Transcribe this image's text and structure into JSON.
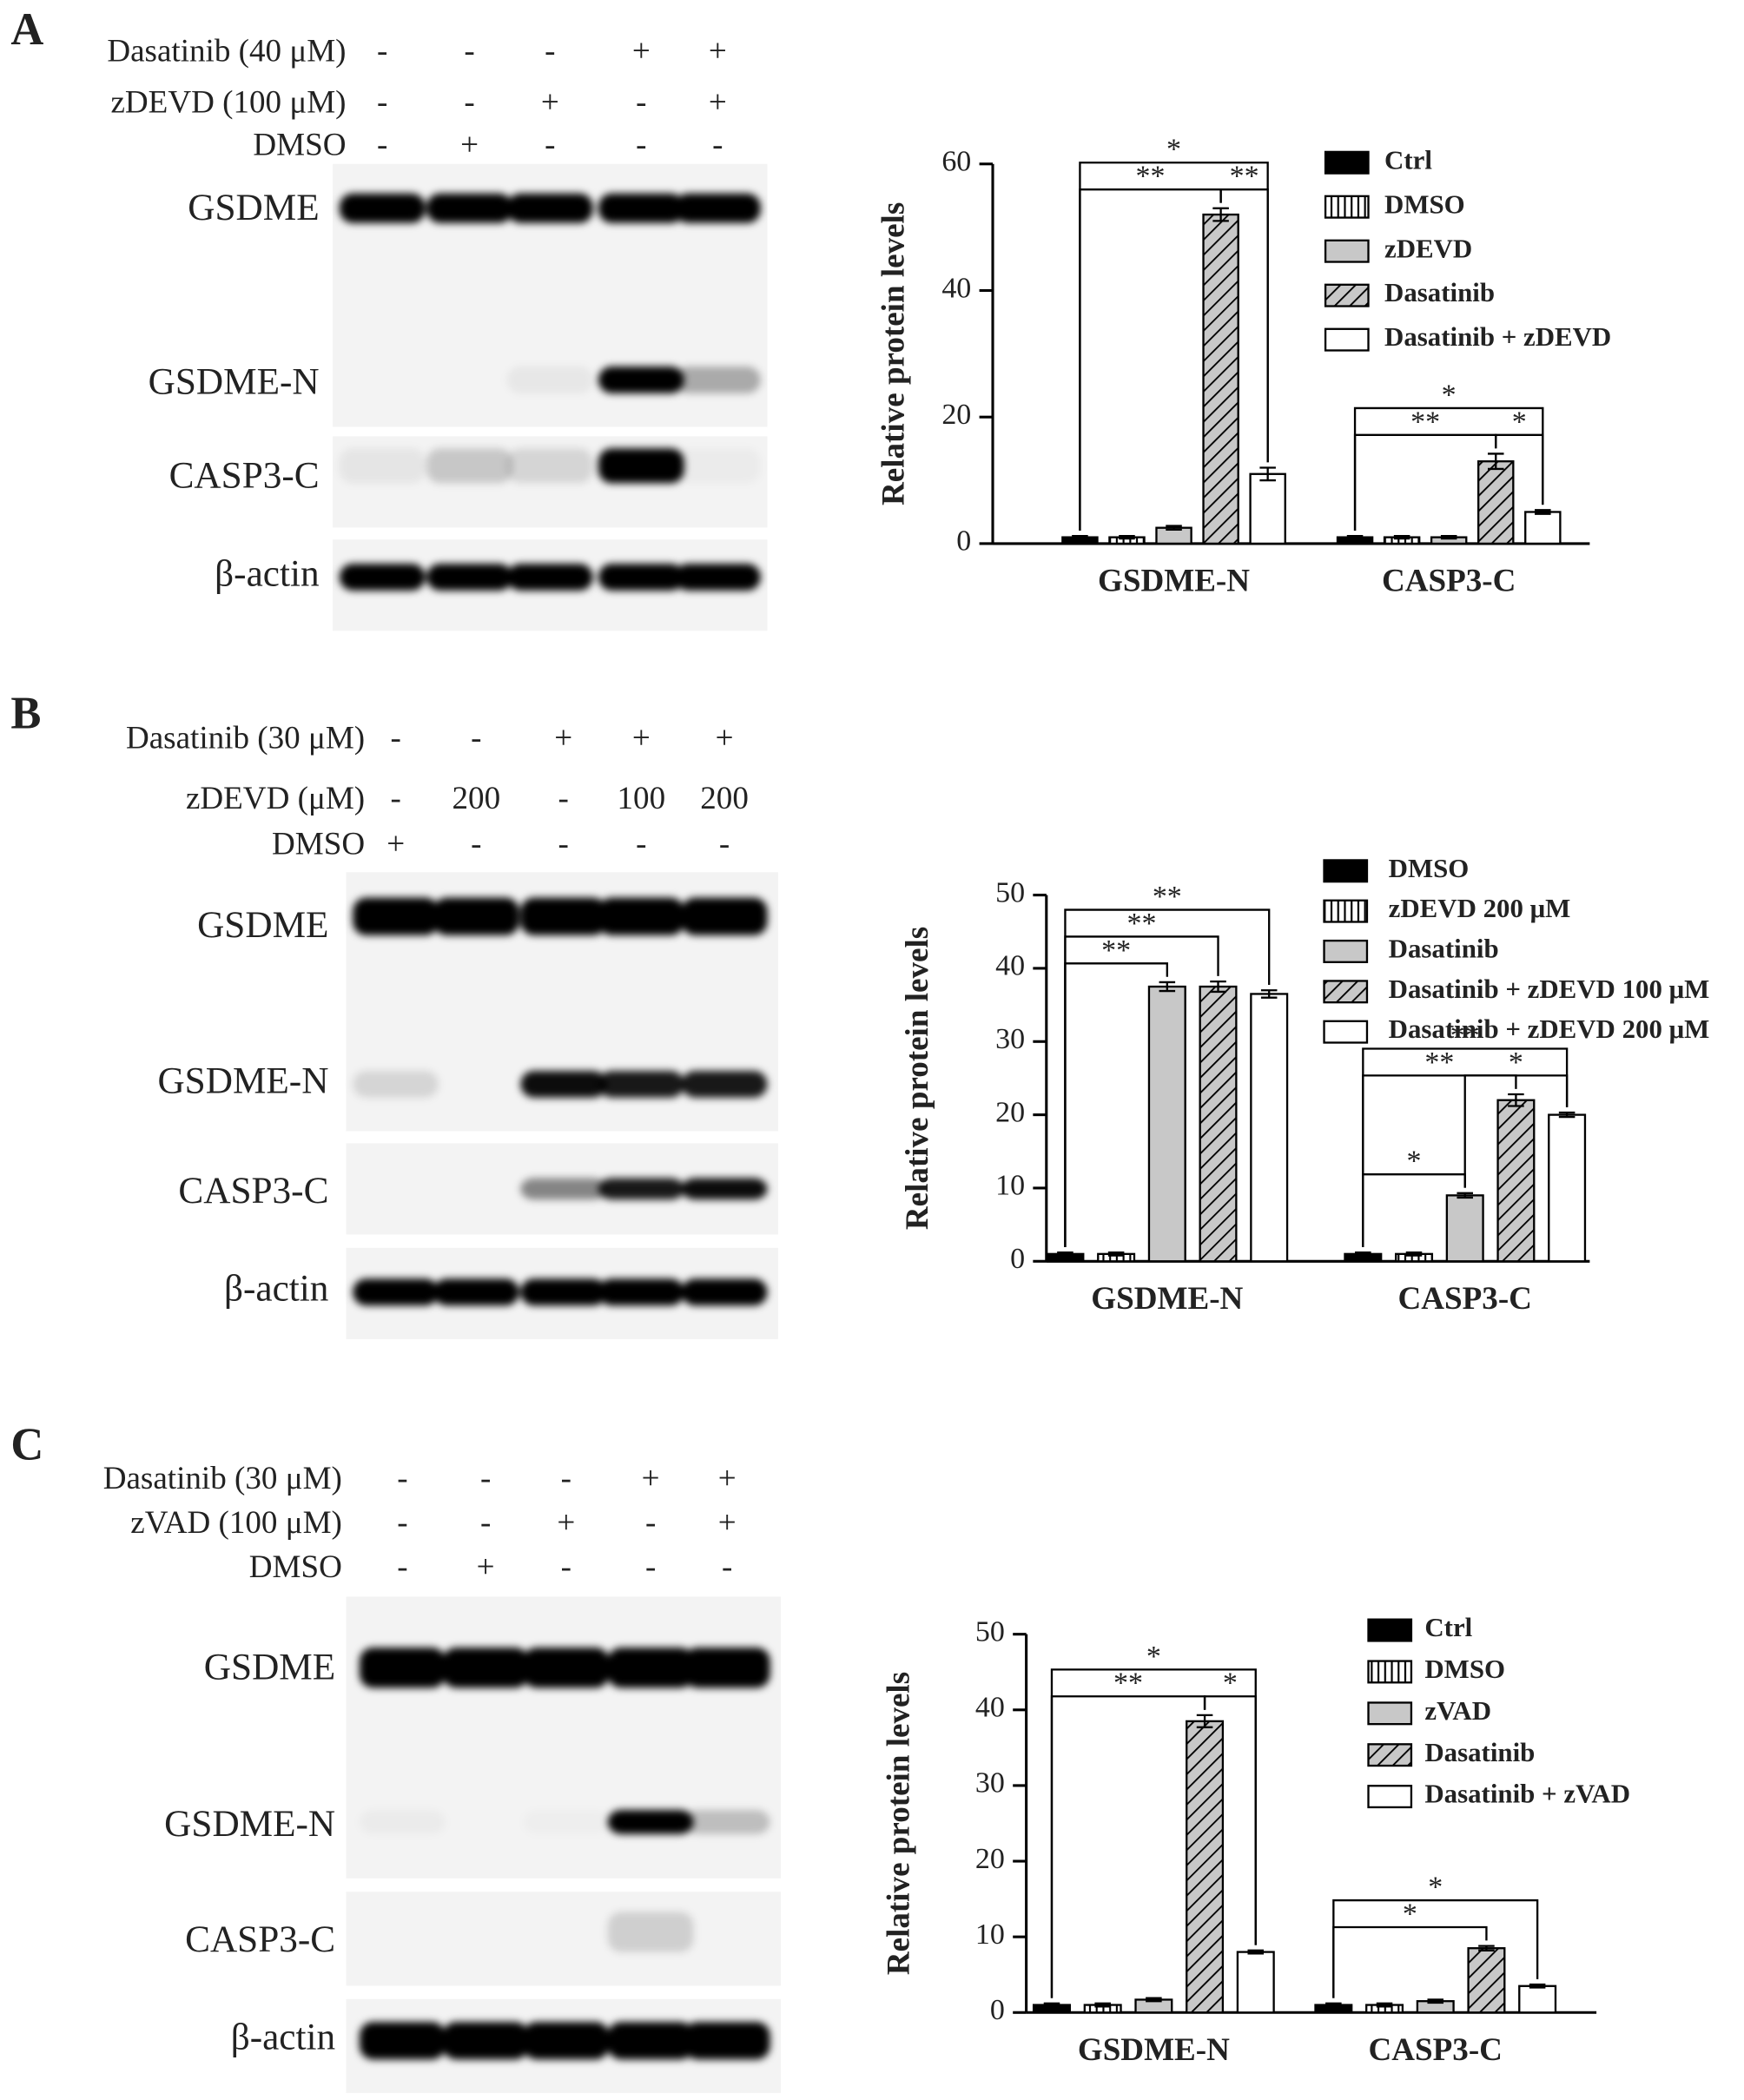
{
  "panels": [
    {
      "label": "A",
      "treatments": [
        {
          "name": "Dasatinib (40 μM)",
          "lanes": [
            "-",
            "-",
            "-",
            "+",
            "+"
          ]
        },
        {
          "name": "zDEVD (100 μM)",
          "lanes": [
            "-",
            "-",
            "+",
            "-",
            "+"
          ]
        },
        {
          "name": "DMSO",
          "lanes": [
            "-",
            "+",
            "-",
            "-",
            "-"
          ]
        }
      ],
      "bands": [
        "GSDME",
        "GSDME-N",
        "CASP3-C",
        "β-actin"
      ]
    },
    {
      "label": "B",
      "treatments": [
        {
          "name": "Dasatinib (30 μM)",
          "lanes": [
            "-",
            "-",
            "+",
            "+",
            "+"
          ]
        },
        {
          "name": "zDEVD (μM)",
          "lanes": [
            "-",
            "200",
            "-",
            "100",
            "200"
          ]
        },
        {
          "name": "DMSO",
          "lanes": [
            "+",
            "-",
            "-",
            "-",
            "-"
          ]
        }
      ],
      "bands": [
        "GSDME",
        "GSDME-N",
        "CASP3-C",
        "β-actin"
      ]
    },
    {
      "label": "C",
      "treatments": [
        {
          "name": "Dasatinib (30 μM)",
          "lanes": [
            "-",
            "-",
            "-",
            "+",
            "+"
          ]
        },
        {
          "name": "zVAD (100 μM)",
          "lanes": [
            "-",
            "-",
            "+",
            "-",
            "+"
          ]
        },
        {
          "name": "DMSO",
          "lanes": [
            "-",
            "+",
            "-",
            "-",
            "-"
          ]
        }
      ],
      "bands": [
        "GSDME",
        "GSDME-N",
        "CASP3-C",
        "β-actin"
      ]
    }
  ],
  "chart_data": [
    {
      "type": "bar",
      "ylabel": "Relative protein levels",
      "categories": [
        "GSDME-N",
        "CASP3-C"
      ],
      "series": [
        {
          "name": "Ctrl",
          "color": "#000000",
          "pattern": "solid",
          "values": [
            1,
            1
          ],
          "errors": [
            0.2,
            0.2
          ]
        },
        {
          "name": "DMSO",
          "color": "#ffffff",
          "pattern": "vertical-stripes",
          "values": [
            1,
            1
          ],
          "errors": [
            0.2,
            0.2
          ]
        },
        {
          "name": "zDEVD",
          "color": "#c8c8c8",
          "pattern": "solid",
          "values": [
            2.5,
            1
          ],
          "errors": [
            0.3,
            0.2
          ]
        },
        {
          "name": "Dasatinib",
          "color": "#c8c8c8",
          "pattern": "diagonal-hatch",
          "values": [
            52,
            13
          ],
          "errors": [
            1,
            1.2
          ]
        },
        {
          "name": "Dasatinib + zDEVD",
          "color": "#ffffff",
          "pattern": "solid",
          "values": [
            11,
            5
          ],
          "errors": [
            1,
            0.3
          ]
        }
      ],
      "ylim": [
        0,
        60
      ],
      "yticks": [
        0,
        20,
        40,
        60
      ],
      "annotations": [
        {
          "text": "**",
          "category": "GSDME-N",
          "between": [
            "Dasatinib",
            "Dasatinib + zDEVD"
          ]
        },
        {
          "text": "**",
          "category": "GSDME-N",
          "between": [
            "Ctrl",
            "Dasatinib"
          ]
        },
        {
          "text": "*",
          "category": "GSDME-N",
          "between": [
            "Ctrl",
            "Dasatinib + zDEVD"
          ]
        },
        {
          "text": "*",
          "category": "CASP3-C",
          "between": [
            "Dasatinib",
            "Dasatinib + zDEVD"
          ]
        },
        {
          "text": "**",
          "category": "CASP3-C",
          "between": [
            "Ctrl",
            "Dasatinib"
          ]
        },
        {
          "text": "*",
          "category": "CASP3-C",
          "between": [
            "Ctrl",
            "Dasatinib + zDEVD"
          ]
        }
      ]
    },
    {
      "type": "bar",
      "ylabel": "Relative protein levels",
      "categories": [
        "GSDME-N",
        "CASP3-C"
      ],
      "series": [
        {
          "name": "DMSO",
          "color": "#000000",
          "pattern": "solid",
          "values": [
            1,
            1
          ],
          "errors": [
            0.2,
            0.2
          ]
        },
        {
          "name": "zDEVD 200 μM",
          "color": "#ffffff",
          "pattern": "vertical-stripes",
          "values": [
            1,
            1
          ],
          "errors": [
            0.2,
            0.2
          ]
        },
        {
          "name": "Dasatinib",
          "color": "#c8c8c8",
          "pattern": "solid",
          "values": [
            37.5,
            9
          ],
          "errors": [
            0.6,
            0.3
          ]
        },
        {
          "name": "Dasatinib + zDEVD 100 μM",
          "color": "#c8c8c8",
          "pattern": "diagonal-hatch",
          "values": [
            37.5,
            22
          ],
          "errors": [
            0.7,
            0.8
          ]
        },
        {
          "name": "Dasatinib + zDEVD 200 μM",
          "color": "#ffffff",
          "pattern": "solid",
          "values": [
            36.5,
            20
          ],
          "errors": [
            0.5,
            0.3
          ]
        }
      ],
      "ylim": [
        0,
        50
      ],
      "yticks": [
        0,
        10,
        20,
        30,
        40,
        50
      ],
      "annotations": [
        {
          "text": "**",
          "category": "GSDME-N",
          "between": [
            "DMSO",
            "Dasatinib"
          ]
        },
        {
          "text": "**",
          "category": "GSDME-N",
          "between": [
            "DMSO",
            "Dasatinib + zDEVD 100 μM"
          ]
        },
        {
          "text": "**",
          "category": "GSDME-N",
          "between": [
            "DMSO",
            "Dasatinib + zDEVD 200 μM"
          ]
        },
        {
          "text": "*",
          "category": "CASP3-C",
          "between": [
            "DMSO",
            "Dasatinib"
          ]
        },
        {
          "text": "*",
          "category": "CASP3-C",
          "between": [
            "Dasatinib",
            "Dasatinib + zDEVD 200 μM"
          ]
        },
        {
          "text": "**",
          "category": "CASP3-C",
          "between": [
            "DMSO",
            "Dasatinib + zDEVD 100 μM"
          ]
        },
        {
          "text": "**",
          "category": "CASP3-C",
          "between": [
            "DMSO",
            "Dasatinib + zDEVD 200 μM"
          ]
        }
      ]
    },
    {
      "type": "bar",
      "ylabel": "Relative protein levels",
      "categories": [
        "GSDME-N",
        "CASP3-C"
      ],
      "series": [
        {
          "name": "Ctrl",
          "color": "#000000",
          "pattern": "solid",
          "values": [
            1,
            1
          ],
          "errors": [
            0.2,
            0.2
          ]
        },
        {
          "name": "DMSO",
          "color": "#ffffff",
          "pattern": "vertical-stripes",
          "values": [
            1,
            1
          ],
          "errors": [
            0.2,
            0.2
          ]
        },
        {
          "name": "zVAD",
          "color": "#c8c8c8",
          "pattern": "solid",
          "values": [
            1.7,
            1.5
          ],
          "errors": [
            0.2,
            0.2
          ]
        },
        {
          "name": "Dasatinib",
          "color": "#c8c8c8",
          "pattern": "diagonal-hatch",
          "values": [
            38.5,
            8.5
          ],
          "errors": [
            0.8,
            0.3
          ]
        },
        {
          "name": "Dasatinib + zVAD",
          "color": "#ffffff",
          "pattern": "solid",
          "values": [
            8,
            3.5
          ],
          "errors": [
            0.2,
            0.2
          ]
        }
      ],
      "ylim": [
        0,
        50
      ],
      "yticks": [
        0,
        10,
        20,
        30,
        40,
        50
      ],
      "annotations": [
        {
          "text": "*",
          "category": "GSDME-N",
          "between": [
            "Dasatinib",
            "Dasatinib + zVAD"
          ]
        },
        {
          "text": "**",
          "category": "GSDME-N",
          "between": [
            "Ctrl",
            "Dasatinib"
          ]
        },
        {
          "text": "*",
          "category": "GSDME-N",
          "between": [
            "Ctrl",
            "Dasatinib + zVAD"
          ]
        },
        {
          "text": "*",
          "category": "CASP3-C",
          "between": [
            "Ctrl",
            "Dasatinib"
          ]
        },
        {
          "text": "*",
          "category": "CASP3-C",
          "between": [
            "Ctrl",
            "Dasatinib + zVAD"
          ]
        }
      ]
    }
  ]
}
